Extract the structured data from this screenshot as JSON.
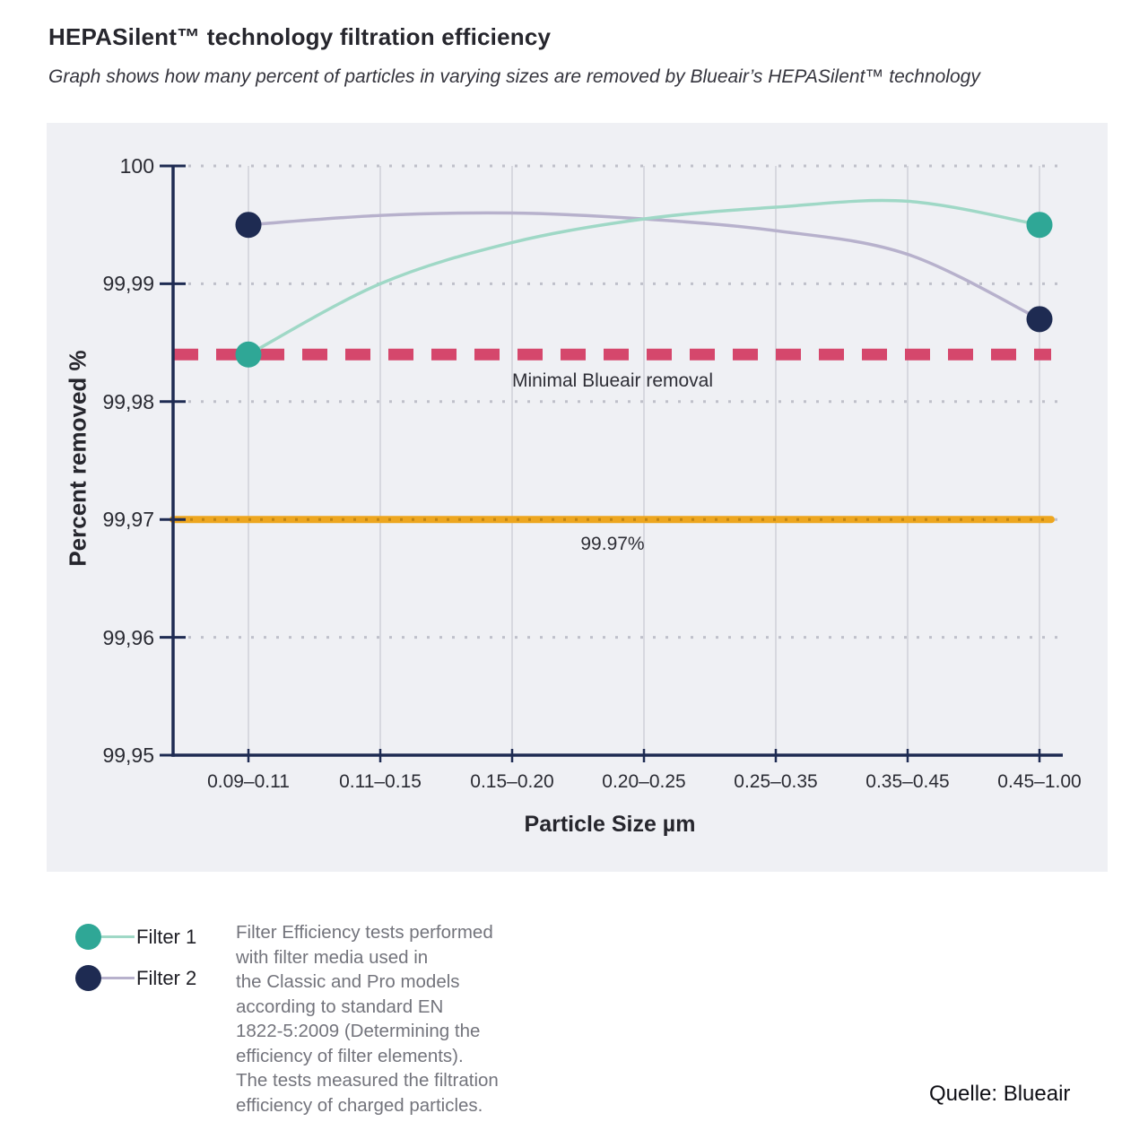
{
  "header": {
    "title": "HEPASilent™ technology filtration efficiency",
    "subtitle": "Graph shows how many percent of particles in varying sizes are removed by Blueair’s HEPASilent™ technology"
  },
  "chart_data": {
    "type": "line",
    "title": "HEPASilent™ technology filtration efficiency",
    "xlabel": "Particle Size µm",
    "ylabel": "Percent removed %",
    "ylim": [
      99.95,
      100
    ],
    "grid": "horizontal dotted + vertical solid",
    "legend_position": "bottom-left",
    "panel_color": "#EFF0F4",
    "axis_color": "#1E2B52",
    "categories": [
      "0.09–0.11",
      "0.11–0.15",
      "0.15–0.20",
      "0.20–0.25",
      "0.25–0.35",
      "0.35–0.45",
      "0.45–1.00"
    ],
    "yticks": [
      {
        "label": "100",
        "value": 100
      },
      {
        "label": "99,99",
        "value": 99.99
      },
      {
        "label": "99,98",
        "value": 99.98
      },
      {
        "label": "99,97",
        "value": 99.97
      },
      {
        "label": "99,96",
        "value": 99.96
      },
      {
        "label": "99,95",
        "value": 99.95
      }
    ],
    "series": [
      {
        "name": "Filter 1",
        "dot_color": "#2FA796",
        "line_color": "#9FD8C6",
        "markers": "endpoints",
        "values": [
          99.984,
          99.99,
          99.9935,
          99.9955,
          99.9965,
          99.997,
          99.995
        ]
      },
      {
        "name": "Filter 2",
        "dot_color": "#1E2B52",
        "line_color": "#B7B1CC",
        "markers": "endpoints",
        "values": [
          99.995,
          99.9958,
          99.996,
          99.9955,
          99.9945,
          99.9925,
          99.987
        ]
      }
    ],
    "reference_lines": [
      {
        "label": "Minimal Blueair removal",
        "value": 99.984,
        "style": "dashed",
        "color": "#D5476C"
      },
      {
        "label": "99.97%",
        "value": 99.97,
        "style": "solid-dotted",
        "color": "#EDA61F"
      }
    ]
  },
  "footer": {
    "note": "Filter Efficiency tests performed\nwith filter media used in\nthe Classic and Pro models\naccording to standard EN\n1822-5:2009 (Determining the\nefficiency of filter elements).\nThe tests measured the filtration\nefficiency of charged particles.",
    "source": "Quelle: Blueair"
  }
}
